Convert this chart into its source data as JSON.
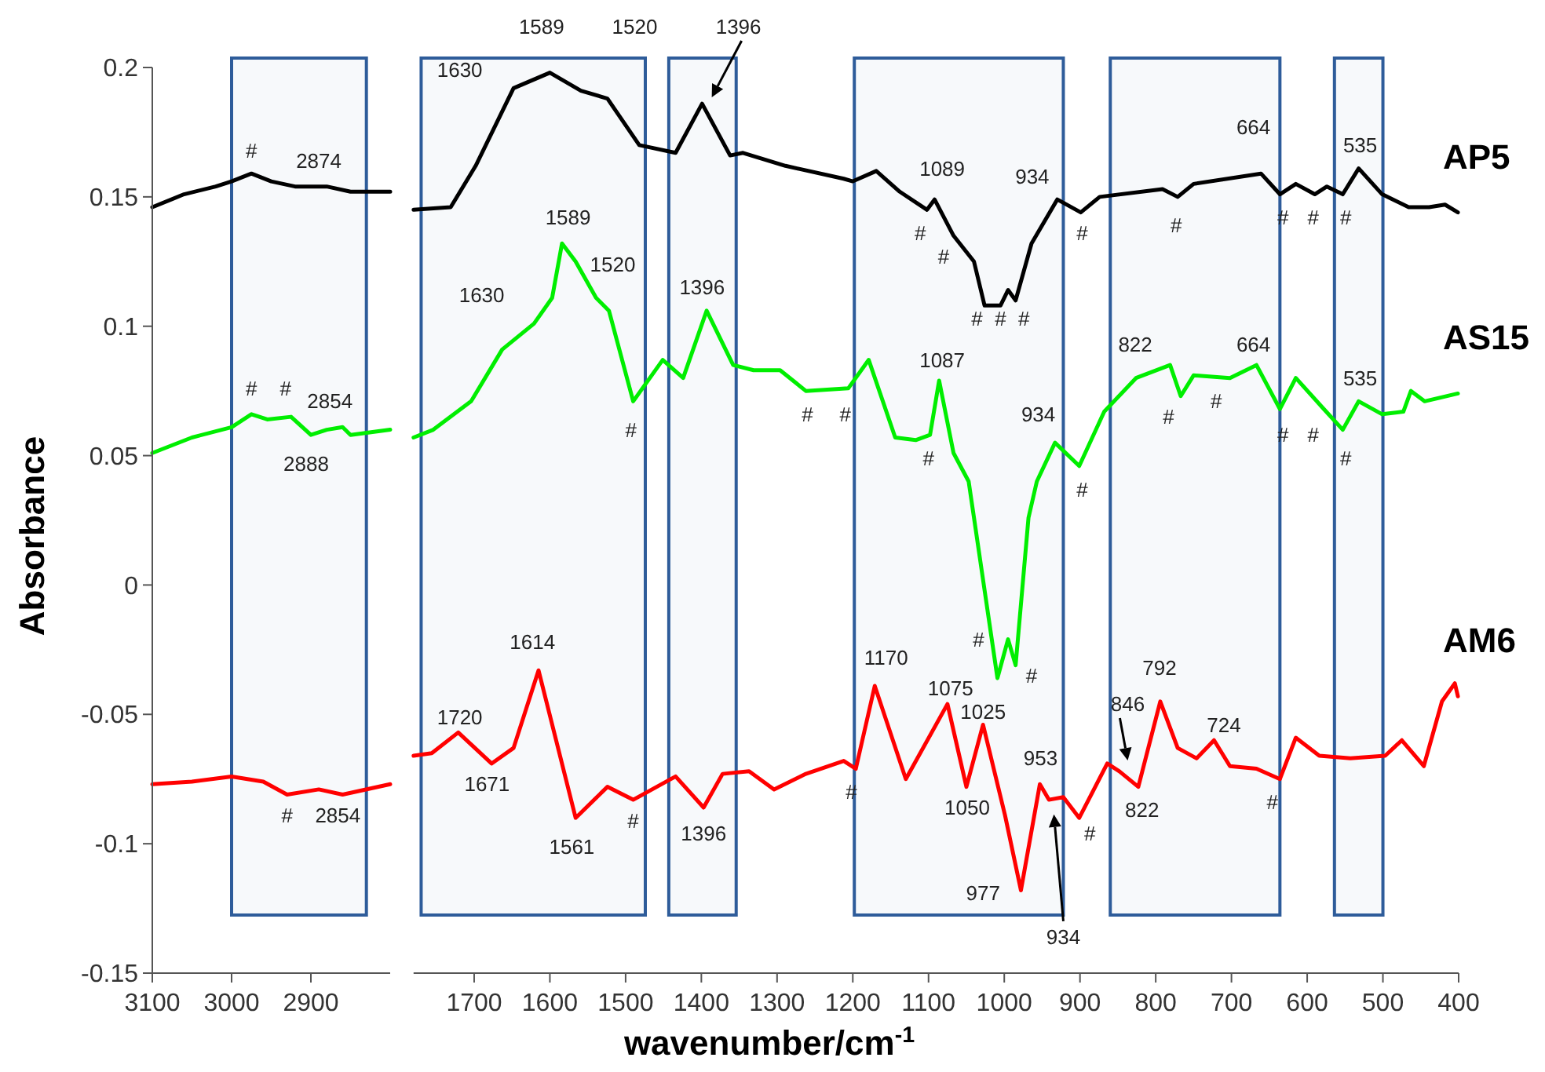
{
  "chart_data": [
    {
      "type": "line",
      "ylabel": "Absorbance",
      "xlim": [
        3100,
        2800
      ],
      "xticks": [
        3100,
        3000,
        2900
      ],
      "ylim": [
        -0.15,
        0.2
      ],
      "yticks": [
        0.2,
        0.15,
        0.1,
        0.05,
        0,
        -0.05,
        -0.1,
        -0.15
      ],
      "series": [
        {
          "color": "#000000",
          "x": [
            3100,
            3060,
            3020,
            3000,
            2975,
            2950,
            2920,
            2880,
            2850,
            2800
          ],
          "values": [
            0.146,
            0.151,
            0.154,
            0.156,
            0.159,
            0.156,
            0.154,
            0.154,
            0.152,
            0.152
          ]
        },
        {
          "color": "#00ee00",
          "x": [
            3100,
            3050,
            3000,
            2975,
            2955,
            2925,
            2900,
            2880,
            2860,
            2850,
            2800
          ],
          "values": [
            0.051,
            0.057,
            0.061,
            0.066,
            0.064,
            0.065,
            0.058,
            0.06,
            0.061,
            0.058,
            0.06
          ]
        },
        {
          "color": "#ff0000",
          "x": [
            3100,
            3050,
            3000,
            2960,
            2930,
            2890,
            2860,
            2800
          ],
          "values": [
            -0.077,
            -0.076,
            -0.074,
            -0.076,
            -0.081,
            -0.079,
            -0.081,
            -0.077
          ]
        }
      ],
      "bands": [
        {
          "axis": "x",
          "from": 3000,
          "to": 2830,
          "color": "#2e5c9a"
        }
      ],
      "annotations": [
        "#",
        "2874",
        "#",
        "#",
        "2854",
        "2888",
        "#",
        "2854"
      ]
    },
    {
      "type": "line",
      "xlabel": "wavenumber/cm$^{-1}$",
      "xlim": [
        1780,
        400
      ],
      "xticks": [
        1700,
        1600,
        1500,
        1400,
        1300,
        1200,
        1100,
        1000,
        900,
        800,
        700,
        600,
        500,
        400
      ],
      "ylim": [
        -0.15,
        0.2
      ],
      "yticks": [
        0.2,
        0.15,
        0.1,
        0.05,
        0,
        -0.05,
        -0.1,
        -0.15
      ],
      "tick_labels": "x",
      "series": [
        {
          "name": "AP5",
          "color": "#000000",
          "x": [
            1780,
            1731,
            1698,
            1648,
            1600,
            1559,
            1524,
            1482,
            1434,
            1399,
            1362,
            1345,
            1289,
            1212,
            1200,
            1169,
            1138,
            1102,
            1092,
            1067,
            1040,
            1026,
            1005,
            995,
            985,
            964,
            930,
            899,
            874,
            791,
            771,
            750,
            661,
            636,
            615,
            590,
            574,
            553,
            532,
            501,
            466,
            439,
            418,
            401
          ],
          "values": [
            0.145,
            0.146,
            0.162,
            0.192,
            0.198,
            0.191,
            0.188,
            0.17,
            0.167,
            0.186,
            0.166,
            0.167,
            0.162,
            0.157,
            0.156,
            0.16,
            0.152,
            0.145,
            0.149,
            0.135,
            0.125,
            0.108,
            0.108,
            0.114,
            0.11,
            0.132,
            0.149,
            0.144,
            0.15,
            0.153,
            0.15,
            0.155,
            0.159,
            0.151,
            0.155,
            0.151,
            0.154,
            0.151,
            0.161,
            0.151,
            0.146,
            0.146,
            0.147,
            0.144
          ]
        },
        {
          "name": "AS15",
          "color": "#00ee00",
          "x": [
            1780,
            1754,
            1704,
            1663,
            1621,
            1597,
            1584,
            1566,
            1539,
            1522,
            1490,
            1451,
            1424,
            1393,
            1358,
            1331,
            1296,
            1262,
            1206,
            1179,
            1144,
            1117,
            1098,
            1086,
            1067,
            1047,
            1040,
            1009,
            995,
            985,
            968,
            957,
            933,
            901,
            868,
            826,
            781,
            767,
            750,
            702,
            667,
            636,
            615,
            578,
            553,
            532,
            501,
            473,
            463,
            445,
            401
          ],
          "values": [
            0.057,
            0.06,
            0.071,
            0.091,
            0.101,
            0.111,
            0.132,
            0.125,
            0.111,
            0.106,
            0.071,
            0.087,
            0.08,
            0.106,
            0.085,
            0.083,
            0.083,
            0.075,
            0.076,
            0.087,
            0.057,
            0.056,
            0.058,
            0.079,
            0.051,
            0.04,
            0.026,
            -0.036,
            -0.021,
            -0.031,
            0.026,
            0.04,
            0.055,
            0.046,
            0.067,
            0.08,
            0.085,
            0.073,
            0.081,
            0.08,
            0.085,
            0.068,
            0.08,
            0.068,
            0.06,
            0.071,
            0.066,
            0.067,
            0.075,
            0.071,
            0.074
          ]
        },
        {
          "name": "AM6",
          "color": "#ff0000",
          "x": [
            1780,
            1756,
            1721,
            1677,
            1648,
            1615,
            1566,
            1524,
            1490,
            1434,
            1397,
            1372,
            1337,
            1304,
            1262,
            1212,
            1196,
            1171,
            1130,
            1075,
            1050,
            1028,
            999,
            978,
            953,
            941,
            922,
            901,
            864,
            848,
            823,
            794,
            771,
            746,
            723,
            702,
            667,
            636,
            615,
            584,
            543,
            497,
            475,
            446,
            422,
            405,
            401
          ],
          "values": [
            -0.066,
            -0.065,
            -0.057,
            -0.069,
            -0.063,
            -0.033,
            -0.09,
            -0.078,
            -0.083,
            -0.074,
            -0.086,
            -0.073,
            -0.072,
            -0.079,
            -0.073,
            -0.068,
            -0.071,
            -0.039,
            -0.075,
            -0.046,
            -0.078,
            -0.054,
            -0.089,
            -0.118,
            -0.077,
            -0.083,
            -0.082,
            -0.09,
            -0.069,
            -0.072,
            -0.078,
            -0.045,
            -0.063,
            -0.067,
            -0.06,
            -0.07,
            -0.071,
            -0.075,
            -0.059,
            -0.066,
            -0.067,
            -0.066,
            -0.06,
            -0.07,
            -0.045,
            -0.038,
            -0.043
          ]
        }
      ],
      "bands": [
        {
          "axis": "x",
          "from": 1770,
          "to": 1474,
          "color": "#2e5c9a"
        },
        {
          "axis": "x",
          "from": 1443,
          "to": 1354,
          "color": "#2e5c9a"
        },
        {
          "axis": "x",
          "from": 1198,
          "to": 922,
          "color": "#2e5c9a"
        },
        {
          "axis": "x",
          "from": 860,
          "to": 636,
          "color": "#2e5c9a"
        },
        {
          "axis": "x",
          "from": 564,
          "to": 500,
          "color": "#2e5c9a"
        }
      ],
      "annotations": [
        "1396",
        "934",
        "846",
        "1589",
        "1520",
        "1630",
        "1089",
        "934",
        "664",
        "535",
        "#",
        "#",
        "#",
        "#",
        "#",
        "#",
        "#",
        "#",
        "#",
        "#",
        "1589",
        "1520",
        "1630",
        "1396",
        "#",
        "#",
        "#",
        "1087",
        "#",
        "934",
        "#",
        "822",
        "664",
        "#",
        "#",
        "#",
        "#",
        "#",
        "535",
        "#",
        "#",
        "1720",
        "1671",
        "1614",
        "1561",
        "#",
        "1396",
        "#",
        "1170",
        "1075",
        "1025",
        "1050",
        "977",
        "953",
        "#",
        "822",
        "792",
        "724",
        "#"
      ]
    }
  ]
}
